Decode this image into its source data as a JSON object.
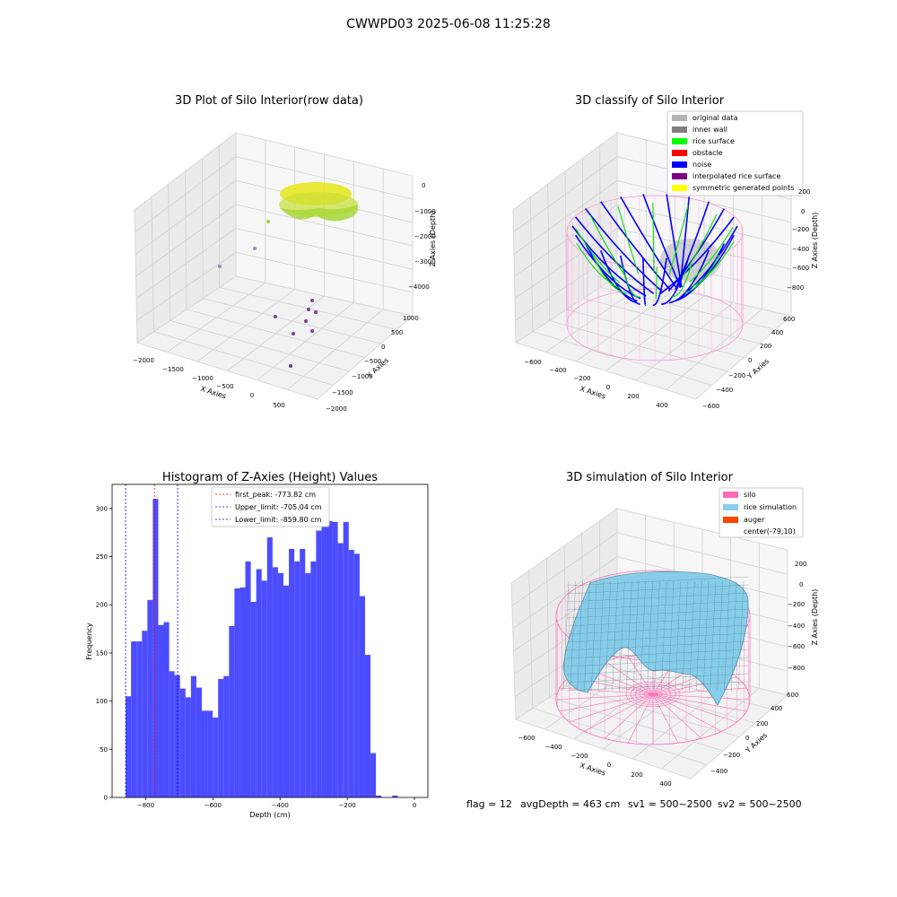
{
  "figure": {
    "suptitle": "CWWPD03 2025-06-08 11:25:28",
    "footer": {
      "flag": "flag = 12",
      "avg_depth": "avgDepth = 463 cm",
      "sv1": "sv1 = 500~2500",
      "sv2": "sv2 = 500~2500"
    }
  },
  "chart_data": [
    {
      "type": "scatter",
      "subtype": "3d",
      "title": "3D Plot of Silo Interior(row data)",
      "xlabel": "X Axies",
      "ylabel": "Y Axies",
      "zlabel": "Z Axies (Depth)",
      "x_ticks": [
        "−2000",
        "−1500",
        "−1000",
        "−500",
        "0",
        "500"
      ],
      "y_ticks": [
        "−2000",
        "−1500",
        "−1000",
        "−500",
        "0",
        "500",
        "1000"
      ],
      "z_ticks": [
        "−4000",
        "−3000",
        "−2000",
        "−1000",
        "0"
      ],
      "grid": true,
      "colors": {
        "surface": "#e6e61a",
        "surface_alt": "#9ad63c",
        "outlier_purple": "#7a3e8e",
        "outlier_gray": "#9a8cc0"
      }
    },
    {
      "type": "scatter",
      "subtype": "3d",
      "title": "3D classify of Silo Interior",
      "xlabel": "X Axies",
      "ylabel": "Y Axies",
      "zlabel": "Z Axies (Depth)",
      "x_ticks": [
        "−600",
        "−400",
        "−200",
        "0",
        "200",
        "400"
      ],
      "y_ticks": [
        "−600",
        "−400",
        "−200",
        "0",
        "200",
        "400",
        "600"
      ],
      "z_ticks": [
        "−800",
        "−600",
        "−400",
        "−200",
        "0",
        "200"
      ],
      "legend": {
        "position": "upper-right",
        "entries": [
          {
            "label": "original data",
            "color": "#b2b2b2"
          },
          {
            "label": "inner wall",
            "color": "#808080"
          },
          {
            "label": "rice surface",
            "color": "#00ff00"
          },
          {
            "label": "obstacle",
            "color": "#ff0000"
          },
          {
            "label": "noise",
            "color": "#0000ff"
          },
          {
            "label": "interpolated rice surface",
            "color": "#800080"
          },
          {
            "label": "symmetric generated points",
            "color": "#ffff00"
          }
        ]
      },
      "grid": true
    },
    {
      "type": "bar",
      "subtype": "histogram",
      "title": "Histogram of Z-Axies (Height) Values",
      "xlabel": "Depth (cm)",
      "ylabel": "Frequency",
      "xlim": [
        -900,
        40
      ],
      "ylim": [
        0,
        325
      ],
      "x_ticks": [
        -800,
        -600,
        -400,
        -200,
        0
      ],
      "x_tick_labels": [
        "−800",
        "−600",
        "−400",
        "−200",
        "0"
      ],
      "y_ticks": [
        0,
        50,
        100,
        150,
        200,
        250,
        300
      ],
      "bin_start": -859.8,
      "bin_width": 16.2,
      "values": [
        105,
        162,
        162,
        173,
        205,
        310,
        179,
        182,
        131,
        127,
        113,
        104,
        126,
        114,
        90,
        90,
        83,
        123,
        126,
        178,
        217,
        218,
        245,
        203,
        237,
        225,
        270,
        239,
        233,
        220,
        258,
        245,
        258,
        233,
        245,
        277,
        298,
        287,
        286,
        264,
        286,
        257,
        253,
        209,
        148,
        46,
        2,
        0,
        0,
        2
      ],
      "bar_color": "#4c4cff",
      "grid": false,
      "vlines": [
        {
          "x": -773.82,
          "label": "first_peak: -773.82 cm",
          "color": "#ff0000"
        },
        {
          "x": -705.04,
          "label": "Upper_limit: -705.04 cm",
          "color": "#0000cc"
        },
        {
          "x": -859.8,
          "label": "Lower_limit: -859.80 cm",
          "color": "#0000cc"
        }
      ],
      "legend": {
        "position": "top-center"
      }
    },
    {
      "type": "area",
      "subtype": "3d-surface",
      "title": "3D simulation of Silo Interior",
      "xlabel": "X Axies",
      "ylabel": "Y Axies",
      "zlabel": "Z Axies (Depth)",
      "x_ticks": [
        "−600",
        "−400",
        "−200",
        "0",
        "200",
        "400"
      ],
      "y_ticks": [
        "−400",
        "−200",
        "0",
        "200",
        "400",
        "600"
      ],
      "z_ticks": [
        "−800",
        "−600",
        "−400",
        "−200",
        "0",
        "200"
      ],
      "legend": {
        "position": "upper-right",
        "entries": [
          {
            "label": "silo",
            "color": "#ff69b4"
          },
          {
            "label": "rice simulation",
            "color": "#87ceeb"
          },
          {
            "label": "auger",
            "color": "#ff4500"
          },
          {
            "label": "center(-79,10)",
            "color": "#ffffff"
          }
        ]
      },
      "grid": true
    }
  ]
}
